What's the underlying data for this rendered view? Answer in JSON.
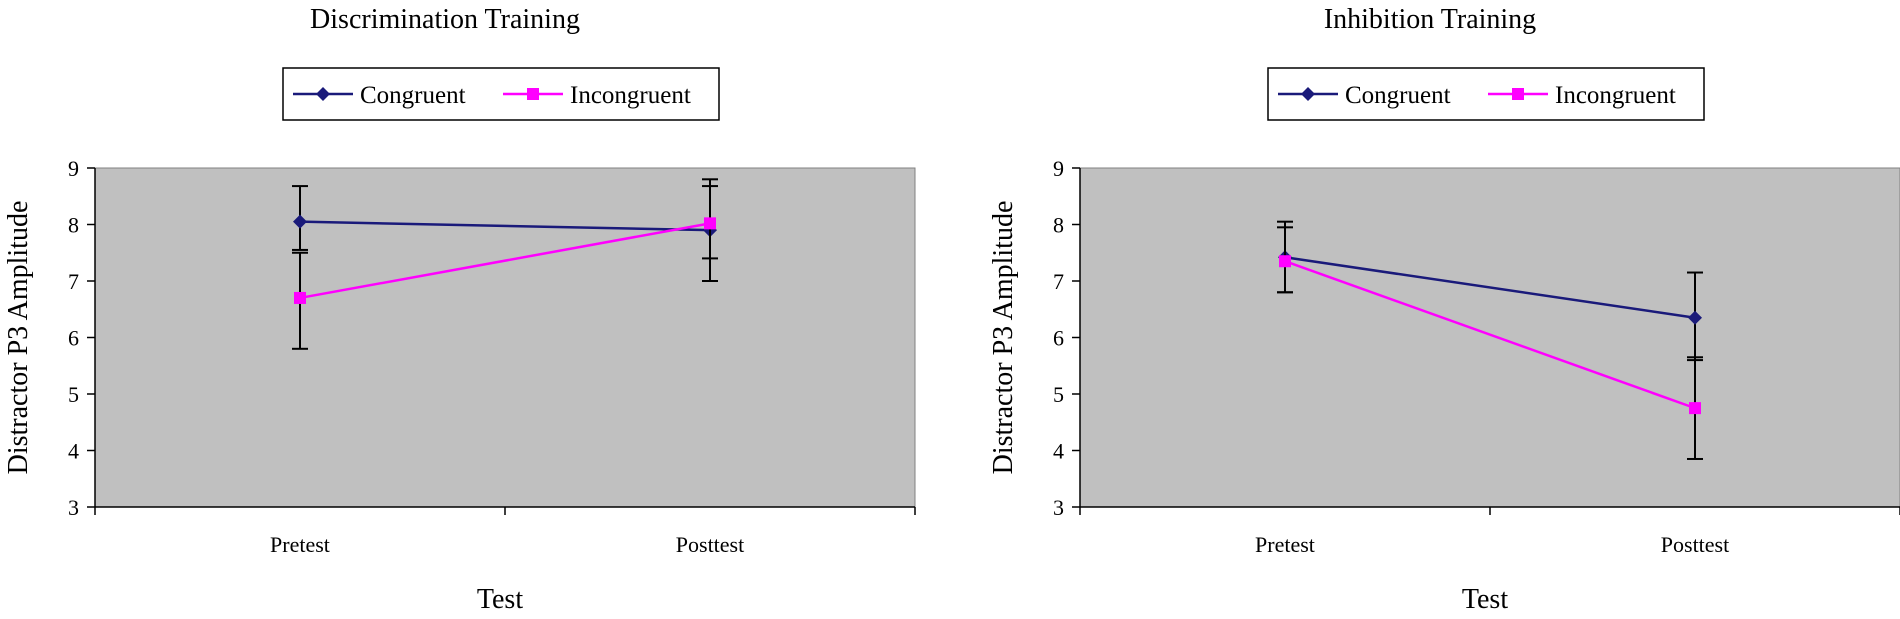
{
  "chart_data": [
    {
      "type": "line",
      "title": "Discrimination Training",
      "xlabel": "Test",
      "ylabel": "Distractor P3 Amplitude",
      "ylim": [
        3,
        9
      ],
      "yticks": [
        "3",
        "4",
        "5",
        "6",
        "7",
        "8",
        "9"
      ],
      "categories": [
        "Pretest",
        "Posttest"
      ],
      "grid": false,
      "legend_position": "top",
      "series": [
        {
          "name": "Congruent",
          "color": "#1a1a7a",
          "marker": "diamond",
          "values": [
            8.05,
            7.9
          ],
          "err_low": [
            7.55,
            7.0
          ],
          "err_high": [
            8.68,
            8.8
          ]
        },
        {
          "name": "Incongruent",
          "color": "#ff00ff",
          "marker": "square",
          "values": [
            6.7,
            8.02
          ],
          "err_low": [
            5.8,
            7.4
          ],
          "err_high": [
            7.5,
            8.68
          ]
        }
      ]
    },
    {
      "type": "line",
      "title": "Inhibition Training",
      "xlabel": "Test",
      "ylabel": "Distractor P3 Amplitude",
      "ylim": [
        3,
        9
      ],
      "yticks": [
        "3",
        "4",
        "5",
        "6",
        "7",
        "8",
        "9"
      ],
      "categories": [
        "Pretest",
        "Posttest"
      ],
      "grid": false,
      "legend_position": "top",
      "series": [
        {
          "name": "Congruent",
          "color": "#1a1a7a",
          "marker": "diamond",
          "values": [
            7.42,
            6.35
          ],
          "err_low": [
            6.8,
            5.6
          ],
          "err_high": [
            8.05,
            7.15
          ]
        },
        {
          "name": "Incongruent",
          "color": "#ff00ff",
          "marker": "square",
          "values": [
            7.35,
            4.75
          ],
          "err_low": [
            6.8,
            3.85
          ],
          "err_high": [
            7.95,
            5.65
          ]
        }
      ]
    }
  ]
}
